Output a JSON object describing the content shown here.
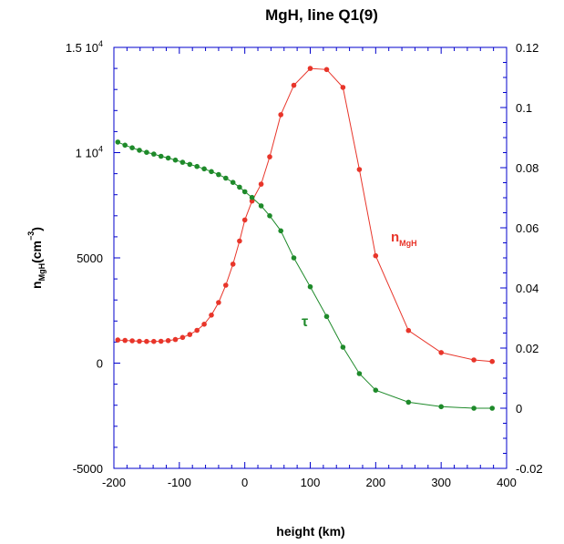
{
  "chart_data": {
    "type": "line",
    "title": "MgH, line Q1(9)",
    "xlabel": "height (km)",
    "ylabel_left": {
      "main": "n",
      "sub": "MgH",
      "unit_open": "(cm",
      "unit_sup": "−3",
      "unit_close": ")"
    },
    "xlim": [
      -200,
      400
    ],
    "ylim_left": [
      -5000,
      15000
    ],
    "ylim_right": [
      -0.02,
      0.12
    ],
    "x_ticks": [
      "-200",
      "-100",
      "0",
      "100",
      "200",
      "300",
      "400"
    ],
    "y_left_ticks": [
      {
        "value": -5000,
        "label": "-5000",
        "sup": ""
      },
      {
        "value": 0,
        "label": "0",
        "sup": ""
      },
      {
        "value": 5000,
        "label": "5000",
        "sup": ""
      },
      {
        "value": 10000,
        "label": "1 10",
        "sup": "4"
      },
      {
        "value": 15000,
        "label": "1.5 10",
        "sup": "4"
      }
    ],
    "y_right_ticks": [
      "-0.02",
      "0",
      "0.02",
      "0.04",
      "0.06",
      "0.08",
      "0.1",
      "0.12"
    ],
    "grid": false,
    "colors": {
      "axis": "#0000cc",
      "n_mgh": "#e8352a",
      "tau": "#1e8a2a"
    },
    "series": [
      {
        "name": "n_MgH",
        "label_main": "n",
        "label_sub": "MgH",
        "axis": "left",
        "x": [
          -194,
          -183,
          -172,
          -161,
          -150,
          -139,
          -128,
          -117,
          -106,
          -95,
          -84,
          -73,
          -62,
          -51,
          -40,
          -29,
          -18,
          -8,
          0,
          11,
          25,
          38,
          55,
          75,
          100,
          125,
          150,
          175,
          200,
          250,
          300,
          350,
          378
        ],
        "y": [
          1100,
          1080,
          1060,
          1040,
          1030,
          1030,
          1040,
          1070,
          1120,
          1220,
          1360,
          1560,
          1850,
          2280,
          2880,
          3700,
          4700,
          5800,
          6800,
          7700,
          8500,
          9800,
          11800,
          13200,
          14000,
          13950,
          13100,
          9200,
          5100,
          1550,
          500,
          150,
          80
        ]
      },
      {
        "name": "tau",
        "label_main": "τ",
        "axis": "right",
        "x": [
          -194,
          -183,
          -172,
          -161,
          -150,
          -139,
          -128,
          -117,
          -106,
          -95,
          -84,
          -73,
          -62,
          -51,
          -40,
          -29,
          -18,
          -8,
          0,
          11,
          25,
          38,
          55,
          75,
          100,
          125,
          150,
          175,
          200,
          250,
          300,
          350,
          378
        ],
        "y": [
          0.0885,
          0.0875,
          0.0866,
          0.0858,
          0.0851,
          0.0845,
          0.0838,
          0.0832,
          0.0825,
          0.0818,
          0.0811,
          0.0804,
          0.0796,
          0.0787,
          0.0777,
          0.0765,
          0.0751,
          0.0735,
          0.072,
          0.0701,
          0.0673,
          0.064,
          0.059,
          0.05,
          0.0404,
          0.0305,
          0.0203,
          0.0115,
          0.006,
          0.002,
          0.0005,
          0.0,
          0.0
        ]
      }
    ]
  }
}
